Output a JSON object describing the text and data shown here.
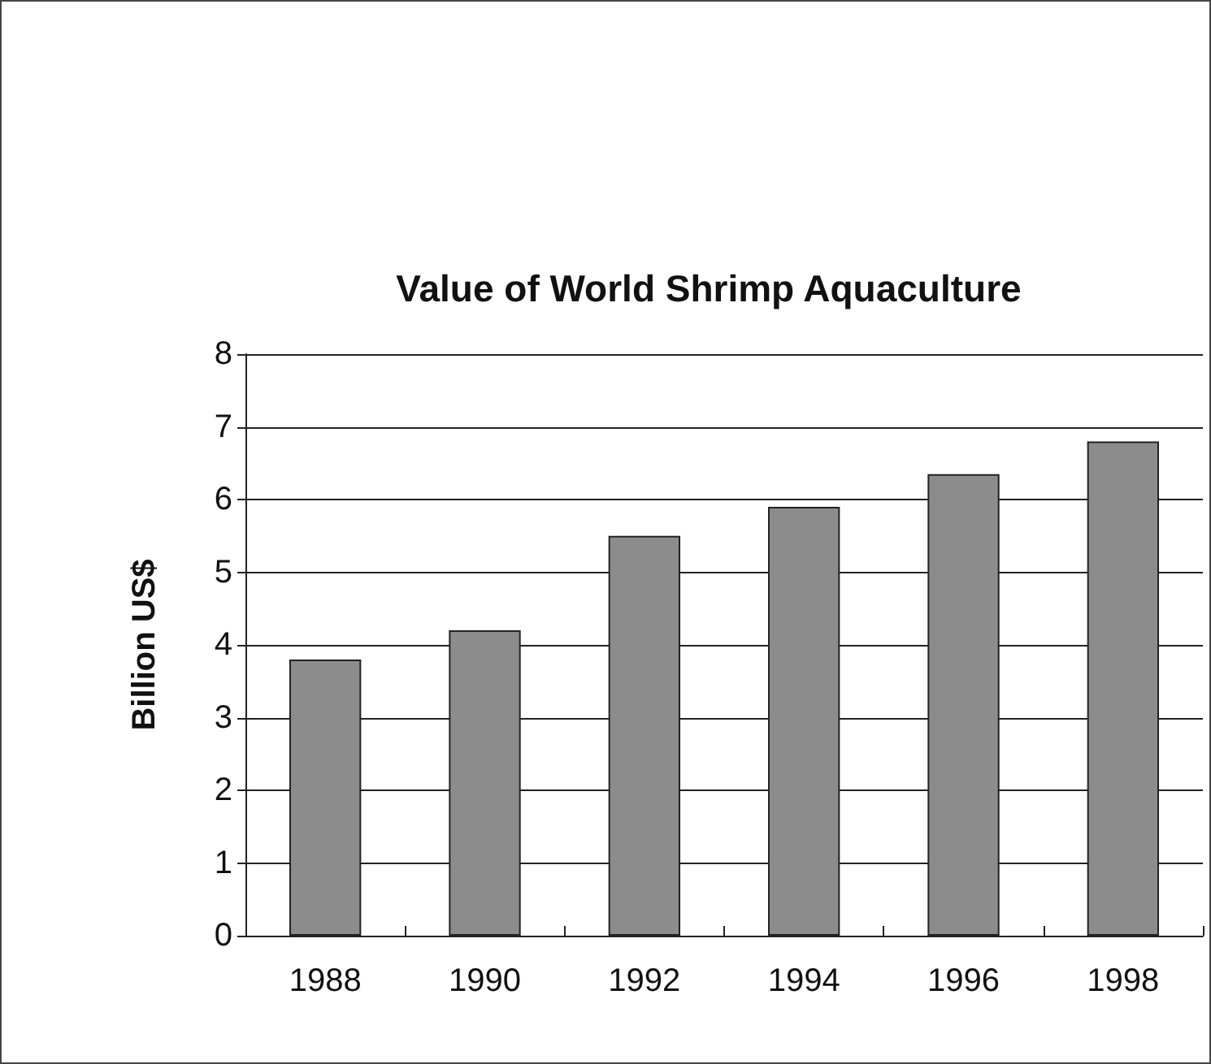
{
  "chart_data": {
    "type": "bar",
    "title": "Value of World Shrimp Aquaculture",
    "ylabel": "Billion US$",
    "categories": [
      "1988",
      "1990",
      "1992",
      "1994",
      "1996",
      "1998"
    ],
    "values": [
      3.8,
      4.2,
      5.5,
      5.9,
      6.35,
      6.8
    ],
    "color": "#8c8c8c",
    "ylim": [
      0,
      8
    ],
    "yticks": [
      0,
      1,
      2,
      3,
      4,
      5,
      6,
      7,
      8
    ],
    "grid": "y"
  }
}
